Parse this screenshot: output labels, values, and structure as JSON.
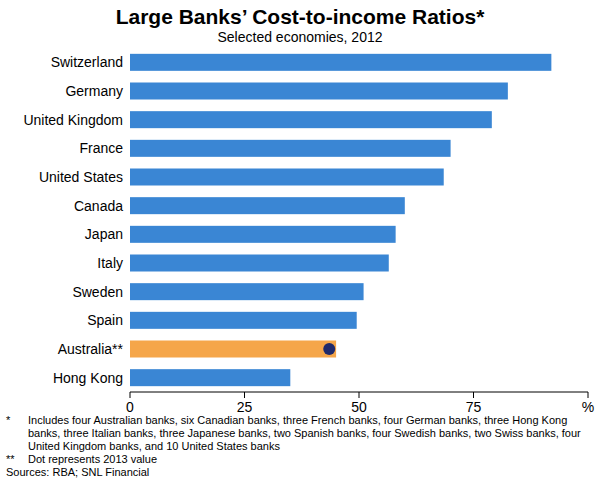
{
  "chart_data": {
    "type": "bar",
    "orientation": "horizontal",
    "title": "Large Banks’ Cost-to-income Ratios*",
    "subtitle": "Selected economies, 2012",
    "categories": [
      "Switzerland",
      "Germany",
      "United Kingdom",
      "France",
      "United States",
      "Canada",
      "Japan",
      "Italy",
      "Sweden",
      "Spain",
      "Australia**",
      "Hong Kong"
    ],
    "series": [
      {
        "type": "bar",
        "color": "#3a86d4",
        "colors": [
          "#3a86d4",
          "#3a86d4",
          "#3a86d4",
          "#3a86d4",
          "#3a86d4",
          "#3a86d4",
          "#3a86d4",
          "#3a86d4",
          "#3a86d4",
          "#3a86d4",
          "#f5a64a",
          "#3a86d4"
        ],
        "values": [
          92,
          82.5,
          79,
          70,
          68.5,
          60,
          58,
          56.5,
          51,
          49.5,
          45,
          35
        ]
      },
      {
        "type": "scatter",
        "marker": "circle",
        "color": "#1f2a6b",
        "values": [
          null,
          null,
          null,
          null,
          null,
          null,
          null,
          null,
          null,
          null,
          43.5,
          null
        ]
      }
    ],
    "xlim": [
      0,
      100
    ],
    "xticks": [
      0,
      25,
      50,
      75,
      {
        "value": 100,
        "label": "%"
      }
    ],
    "grid": false,
    "notes": [
      {
        "marker": "*",
        "text": "Includes four Australian banks, six Canadian banks, three French banks, four German banks, three Hong Kong banks, three Italian banks, three Japanese banks, two Spanish banks, four Swedish banks, two Swiss banks, four United Kingdom banks, and 10 United States banks"
      },
      {
        "marker": "**",
        "text": "Dot represents 2013 value"
      }
    ],
    "source": "Sources: RBA; SNL Financial"
  }
}
